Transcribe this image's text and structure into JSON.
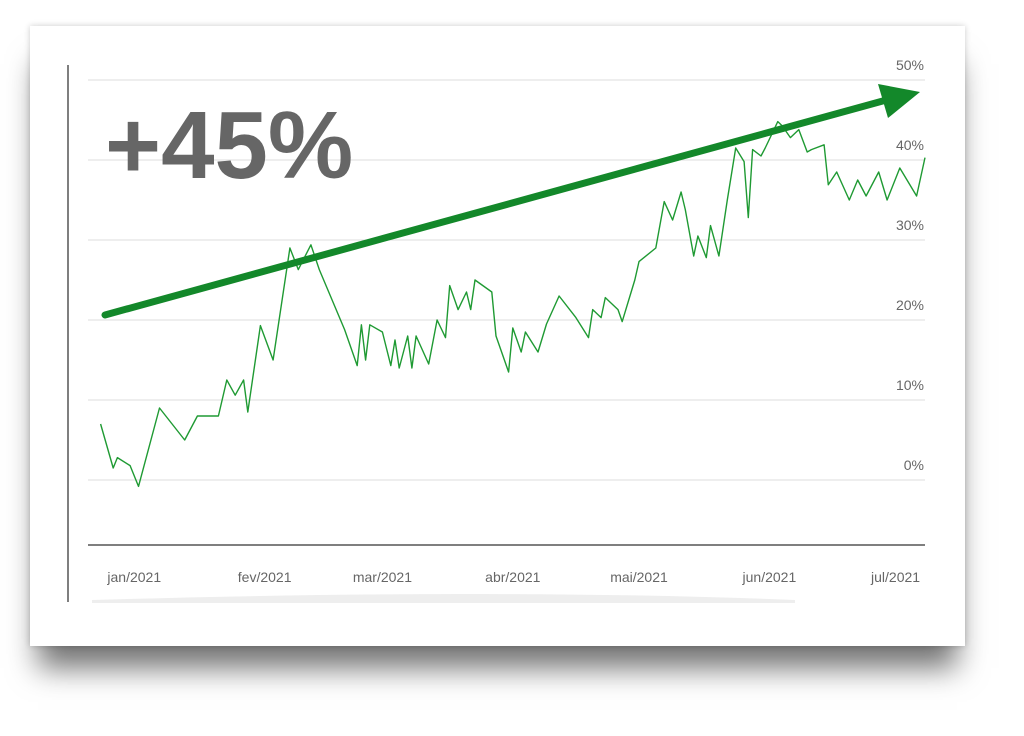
{
  "chart_data": {
    "type": "line",
    "annotation": "+45%",
    "color": "#1f9a33",
    "annotation_color": "#13882a",
    "grid": true,
    "x": [
      -7,
      -4,
      -3,
      0,
      2,
      7,
      13,
      16,
      21,
      23,
      25,
      27,
      28,
      31,
      34,
      38,
      40,
      43,
      45,
      51,
      54,
      55,
      56,
      57,
      60,
      62,
      63,
      64,
      66,
      67,
      68,
      71,
      73,
      75,
      76,
      78,
      80,
      81,
      82,
      86,
      87,
      90,
      91,
      93,
      94,
      97,
      99,
      102,
      106,
      109,
      110,
      112,
      113,
      116,
      117,
      120,
      121,
      125,
      127,
      129,
      131,
      132,
      134,
      135,
      137,
      138,
      140,
      142,
      144,
      146,
      147,
      148,
      150,
      151,
      154,
      155,
      157,
      159,
      161,
      162,
      165,
      166,
      168,
      171,
      173,
      175,
      178,
      180,
      183,
      187,
      189
    ],
    "values": [
      7,
      1.5,
      2.8,
      1.8,
      -0.8,
      9,
      5,
      8,
      8,
      12.5,
      10.6,
      12.5,
      8.5,
      19.3,
      15,
      29,
      26.3,
      29.4,
      26.3,
      18.8,
      14.3,
      19.4,
      15,
      19.4,
      18.5,
      14.3,
      17.5,
      14,
      18,
      14,
      18,
      14.5,
      20,
      17.8,
      24.3,
      21.3,
      23.5,
      21.3,
      25,
      23.5,
      18,
      13.5,
      19,
      16,
      18.5,
      16,
      19.5,
      23,
      20.3,
      17.8,
      21.3,
      20.3,
      22.8,
      21.3,
      19.8,
      25,
      27.3,
      29,
      34.8,
      32.5,
      36,
      33.8,
      28,
      30.5,
      27.8,
      31.8,
      28,
      35,
      41.5,
      39.8,
      32.8,
      41.3,
      40.5,
      41.5,
      44.8,
      44.3,
      42.8,
      43.8,
      41,
      41.3,
      41.9,
      36.9,
      38.5,
      35,
      37.5,
      35.5,
      38.5,
      35,
      39,
      35.5,
      40.3
    ],
    "xlim": [
      -10,
      189
    ],
    "xticks": [
      {
        "value": 1,
        "label": "jan/2021"
      },
      {
        "value": 32,
        "label": "fev/2021"
      },
      {
        "value": 60,
        "label": "mar/2021"
      },
      {
        "value": 91,
        "label": "abr/2021"
      },
      {
        "value": 121,
        "label": "mai/2021"
      },
      {
        "value": 152,
        "label": "jun/2021"
      },
      {
        "value": 182,
        "label": "jul/2021"
      }
    ],
    "ylim": [
      -8,
      52
    ],
    "yticks": [
      {
        "value": 0,
        "label": "0%"
      },
      {
        "value": 10,
        "label": "10%"
      },
      {
        "value": 20,
        "label": "20%"
      },
      {
        "value": 30,
        "label": "30%"
      },
      {
        "value": 40,
        "label": "40%"
      },
      {
        "value": 50,
        "label": "50%"
      }
    ]
  }
}
